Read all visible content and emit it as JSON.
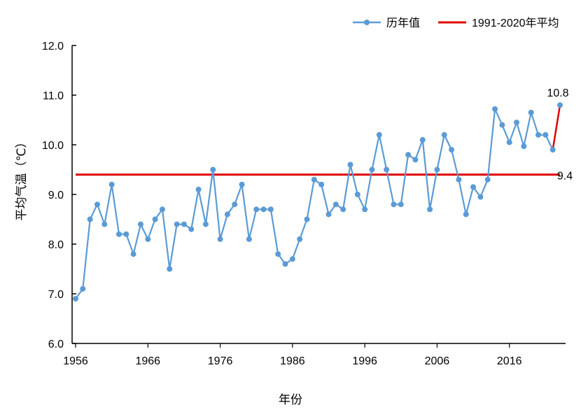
{
  "chart_data": {
    "type": "line",
    "title": "",
    "xlabel": "年份",
    "ylabel": "平均气温（℃）",
    "ylim": [
      6.0,
      12.0
    ],
    "xlim": [
      1956,
      2023
    ],
    "yticks": [
      "6.0",
      "7.0",
      "8.0",
      "9.0",
      "10.0",
      "11.0",
      "12.0"
    ],
    "xticks": [
      "1956",
      "1966",
      "1976",
      "1986",
      "1996",
      "2006",
      "2016"
    ],
    "grid": false,
    "legend_position": "top-right",
    "series": [
      {
        "name": "历年值",
        "color": "#5b9bd5",
        "x": [
          1956,
          1957,
          1958,
          1959,
          1960,
          1961,
          1962,
          1963,
          1964,
          1965,
          1966,
          1967,
          1968,
          1969,
          1970,
          1971,
          1972,
          1973,
          1974,
          1975,
          1976,
          1977,
          1978,
          1979,
          1980,
          1981,
          1982,
          1983,
          1984,
          1985,
          1986,
          1987,
          1988,
          1989,
          1990,
          1991,
          1992,
          1993,
          1994,
          1995,
          1996,
          1997,
          1998,
          1999,
          2000,
          2001,
          2002,
          2003,
          2004,
          2005,
          2006,
          2007,
          2008,
          2009,
          2010,
          2011,
          2012,
          2013,
          2014,
          2015,
          2016,
          2017,
          2018,
          2019,
          2020,
          2021,
          2022,
          2023
        ],
        "values": [
          6.9,
          7.1,
          8.5,
          8.8,
          8.4,
          9.2,
          8.2,
          8.2,
          7.8,
          8.4,
          8.1,
          8.5,
          8.7,
          7.5,
          8.4,
          8.4,
          8.3,
          9.1,
          8.4,
          9.5,
          8.1,
          8.6,
          8.8,
          9.2,
          8.1,
          8.7,
          8.7,
          8.7,
          7.8,
          7.6,
          7.7,
          8.1,
          8.5,
          9.3,
          9.2,
          8.6,
          8.8,
          8.7,
          9.6,
          9.0,
          8.7,
          9.5,
          10.2,
          9.5,
          8.8,
          8.8,
          9.8,
          9.7,
          10.1,
          8.7,
          9.5,
          10.2,
          9.9,
          9.3,
          8.6,
          9.15,
          8.95,
          9.3,
          10.72,
          10.4,
          10.05,
          10.45,
          9.97,
          10.65,
          10.2,
          10.2,
          9.9,
          10.8
        ]
      },
      {
        "name": "1991-2020年平均",
        "color": "#e00000",
        "value": 9.4
      }
    ],
    "annotations": [
      {
        "text": "10.8",
        "x": 2023,
        "y": 10.8
      },
      {
        "text": "9.4",
        "x": 2023,
        "y": 9.4
      }
    ]
  }
}
